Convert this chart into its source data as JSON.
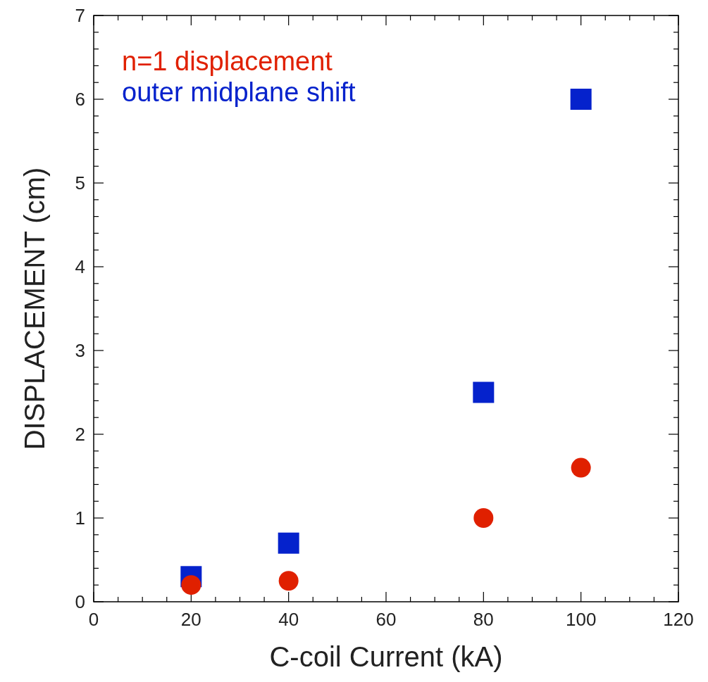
{
  "chart_data": {
    "type": "scatter",
    "xlabel": "C-coil Current (kA)",
    "ylabel": "DISPLACEMENT (cm)",
    "xlim": [
      0,
      120
    ],
    "ylim": [
      0,
      7
    ],
    "xticks": [
      0,
      {
        "value": 5,
        "label": null
      },
      {
        "value": 10,
        "label": null
      },
      {
        "value": 15,
        "label": null
      },
      20,
      {
        "value": 25,
        "label": null
      },
      {
        "value": 30,
        "label": null
      },
      {
        "value": 35,
        "label": null
      },
      40,
      {
        "value": 45,
        "label": null
      },
      {
        "value": 50,
        "label": null
      },
      {
        "value": 55,
        "label": null
      },
      60,
      {
        "value": 65,
        "label": null
      },
      {
        "value": 70,
        "label": null
      },
      {
        "value": 75,
        "label": null
      },
      80,
      {
        "value": 85,
        "label": null
      },
      {
        "value": 90,
        "label": null
      },
      {
        "value": 95,
        "label": null
      },
      100,
      {
        "value": 105,
        "label": null
      },
      {
        "value": 110,
        "label": null
      },
      {
        "value": 115,
        "label": null
      },
      120
    ],
    "yticks": [
      0,
      {
        "value": 0.2,
        "label": null
      },
      {
        "value": 0.4,
        "label": null
      },
      {
        "value": 0.6,
        "label": null
      },
      {
        "value": 0.8,
        "label": null
      },
      1,
      {
        "value": 1.2,
        "label": null
      },
      {
        "value": 1.4,
        "label": null
      },
      {
        "value": 1.6,
        "label": null
      },
      {
        "value": 1.8,
        "label": null
      },
      2,
      {
        "value": 2.2,
        "label": null
      },
      {
        "value": 2.4,
        "label": null
      },
      {
        "value": 2.6,
        "label": null
      },
      {
        "value": 2.8,
        "label": null
      },
      3,
      {
        "value": 3.2,
        "label": null
      },
      {
        "value": 3.4,
        "label": null
      },
      {
        "value": 3.6,
        "label": null
      },
      {
        "value": 3.8,
        "label": null
      },
      4,
      {
        "value": 4.2,
        "label": null
      },
      {
        "value": 4.4,
        "label": null
      },
      {
        "value": 4.6,
        "label": null
      },
      {
        "value": 4.8,
        "label": null
      },
      5,
      {
        "value": 5.2,
        "label": null
      },
      {
        "value": 5.4,
        "label": null
      },
      {
        "value": 5.6,
        "label": null
      },
      {
        "value": 5.8,
        "label": null
      },
      6,
      {
        "value": 6.2,
        "label": null
      },
      {
        "value": 6.4,
        "label": null
      },
      {
        "value": 6.6,
        "label": null
      },
      {
        "value": 6.8,
        "label": null
      },
      7
    ],
    "x": [
      20,
      40,
      80,
      100
    ],
    "legend": "top left",
    "grid": false,
    "series": [
      {
        "name": "n=1 displacement",
        "color": "#e02000",
        "marker": "circle",
        "values": [
          0.2,
          0.25,
          1.0,
          1.6
        ]
      },
      {
        "name": "outer midplane shift",
        "color": "#0522cc",
        "marker": "square",
        "values": [
          0.3,
          0.7,
          2.5,
          6.0
        ]
      }
    ]
  }
}
